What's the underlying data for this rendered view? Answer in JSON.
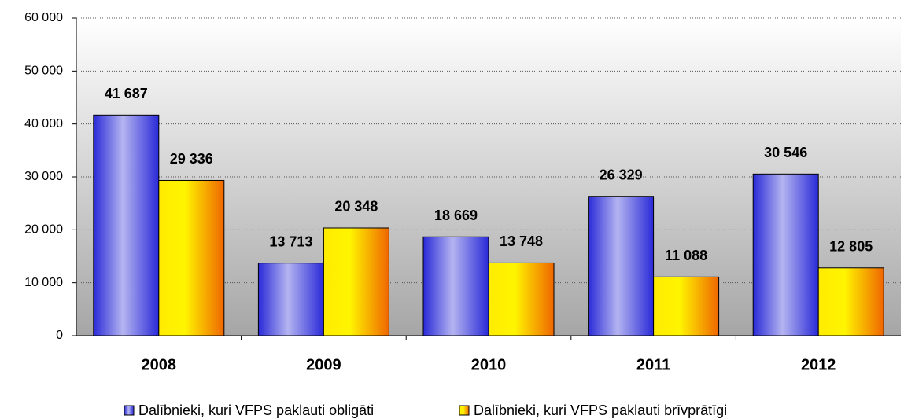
{
  "chart_data": {
    "type": "bar",
    "categories": [
      "2008",
      "2009",
      "2010",
      "2011",
      "2012"
    ],
    "series": [
      {
        "name": "Dalībnieki, kuri VFPS paklauti obligāti",
        "color": "#2a2ad8",
        "values": [
          41687,
          13713,
          18669,
          26329,
          30546
        ],
        "value_labels": [
          "41 687",
          "13 713",
          "18 669",
          "26 329",
          "30 546"
        ]
      },
      {
        "name": "Dalībnieki, kuri VFPS paklauti brīvprātīgi",
        "color": "#ff9900",
        "values": [
          29336,
          20348,
          13748,
          11088,
          12805
        ],
        "value_labels": [
          "29 336",
          "20 348",
          "13 748",
          "11 088",
          "12 805"
        ]
      }
    ],
    "ylim": [
      0,
      60000
    ],
    "yticks": [
      {
        "value": 0,
        "label": "0"
      },
      {
        "value": 10000,
        "label": "10 000"
      },
      {
        "value": 20000,
        "label": "20 000"
      },
      {
        "value": 30000,
        "label": "30 000"
      },
      {
        "value": 40000,
        "label": "40 000"
      },
      {
        "value": 50000,
        "label": "50 000"
      },
      {
        "value": 60000,
        "label": "60 000"
      }
    ],
    "grid": true,
    "legend": "bottom"
  }
}
